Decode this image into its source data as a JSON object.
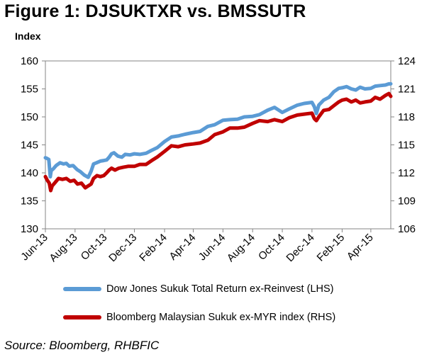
{
  "chart_data": {
    "type": "line",
    "title": "Figure 1: DJSUKTXR vs. BMSSUTR",
    "ylabel": "Index",
    "ylim": [
      130,
      160
    ],
    "y2lim": [
      106,
      124
    ],
    "yticks": [
      130,
      135,
      140,
      145,
      150,
      155,
      160
    ],
    "y2ticks": [
      106,
      109,
      112,
      115,
      118,
      121,
      124
    ],
    "xlim": [
      "2013-06-01",
      "2015-05-12"
    ],
    "xticks": [
      "Jun-13",
      "Aug-13",
      "Oct-13",
      "Dec-13",
      "Feb-14",
      "Apr-14",
      "Jun-14",
      "Aug-14",
      "Oct-14",
      "Dec-14",
      "Feb-15",
      "Apr-15"
    ],
    "xtick_dates": [
      "2013-06-01",
      "2013-08-01",
      "2013-10-01",
      "2013-12-01",
      "2014-02-01",
      "2014-04-01",
      "2014-06-01",
      "2014-08-01",
      "2014-10-01",
      "2014-12-01",
      "2015-02-01",
      "2015-04-01"
    ],
    "grid": false,
    "legend": "bottom",
    "series": [
      {
        "name": "Dow Jones Sukuk Total Return ex-Reinvest (LHS)",
        "axis": "left",
        "color": "#5b9bd5",
        "x": [
          "2013-06-01",
          "2013-06-04",
          "2013-06-08",
          "2013-06-11",
          "2013-06-13",
          "2013-06-17",
          "2013-06-23",
          "2013-07-01",
          "2013-07-08",
          "2013-07-14",
          "2013-07-20",
          "2013-07-28",
          "2013-08-05",
          "2013-08-12",
          "2013-08-20",
          "2013-08-28",
          "2013-09-03",
          "2013-09-08",
          "2013-09-14",
          "2013-09-22",
          "2013-09-29",
          "2013-10-05",
          "2013-10-10",
          "2013-10-15",
          "2013-10-20",
          "2013-10-28",
          "2013-11-05",
          "2013-11-12",
          "2013-11-22",
          "2013-12-01",
          "2013-12-12",
          "2013-12-25",
          "2014-01-05",
          "2014-01-17",
          "2014-02-01",
          "2014-02-15",
          "2014-03-01",
          "2014-03-15",
          "2014-04-01",
          "2014-04-15",
          "2014-05-01",
          "2014-05-15",
          "2014-06-01",
          "2014-06-15",
          "2014-07-01",
          "2014-07-15",
          "2014-08-01",
          "2014-08-15",
          "2014-09-01",
          "2014-09-15",
          "2014-10-01",
          "2014-10-15",
          "2014-11-01",
          "2014-11-15",
          "2014-12-01",
          "2014-12-06",
          "2014-12-10",
          "2014-12-15",
          "2014-12-25",
          "2015-01-05",
          "2015-01-15",
          "2015-01-25",
          "2015-02-01",
          "2015-02-10",
          "2015-02-20",
          "2015-03-01",
          "2015-03-10",
          "2015-03-20",
          "2015-04-01",
          "2015-04-10",
          "2015-04-20",
          "2015-05-01",
          "2015-05-08",
          "2015-05-12"
        ],
        "values": [
          142.7,
          142.6,
          142.4,
          139.3,
          140.4,
          140.7,
          141.3,
          141.8,
          141.6,
          141.7,
          141.2,
          141.3,
          140.6,
          140.2,
          139.6,
          139.2,
          140.3,
          141.6,
          141.8,
          142.1,
          142.2,
          142.3,
          142.8,
          143.4,
          143.6,
          143.0,
          142.8,
          143.3,
          143.2,
          143.4,
          143.3,
          143.5,
          144.0,
          144.5,
          145.6,
          146.4,
          146.6,
          146.9,
          147.2,
          147.4,
          148.3,
          148.6,
          149.4,
          149.5,
          149.6,
          150.0,
          150.1,
          150.4,
          151.2,
          151.7,
          150.8,
          151.4,
          152.1,
          152.4,
          152.6,
          151.8,
          150.6,
          152.1,
          153.0,
          153.5,
          154.5,
          155.1,
          155.2,
          155.4,
          155.0,
          154.8,
          155.3,
          155.0,
          155.1,
          155.5,
          155.6,
          155.7,
          155.9,
          155.9
        ]
      },
      {
        "name": "Bloomberg Malaysian Sukuk ex-MYR index (RHS)",
        "axis": "right",
        "color": "#c00000",
        "x": [
          "2013-06-01",
          "2013-06-05",
          "2013-06-09",
          "2013-06-12",
          "2013-06-15",
          "2013-06-20",
          "2013-06-28",
          "2013-07-06",
          "2013-07-14",
          "2013-07-22",
          "2013-07-30",
          "2013-08-06",
          "2013-08-14",
          "2013-08-22",
          "2013-08-28",
          "2013-09-03",
          "2013-09-08",
          "2013-09-15",
          "2013-09-22",
          "2013-09-29",
          "2013-10-05",
          "2013-10-10",
          "2013-10-15",
          "2013-10-22",
          "2013-10-30",
          "2013-11-08",
          "2013-11-18",
          "2013-12-01",
          "2013-12-12",
          "2013-12-25",
          "2014-01-05",
          "2014-01-17",
          "2014-02-01",
          "2014-02-15",
          "2014-03-01",
          "2014-03-15",
          "2014-04-01",
          "2014-04-15",
          "2014-05-01",
          "2014-05-15",
          "2014-06-01",
          "2014-06-15",
          "2014-07-01",
          "2014-07-15",
          "2014-08-01",
          "2014-08-15",
          "2014-09-01",
          "2014-09-15",
          "2014-10-01",
          "2014-10-15",
          "2014-11-01",
          "2014-11-15",
          "2014-12-01",
          "2014-12-06",
          "2014-12-10",
          "2014-12-15",
          "2014-12-25",
          "2015-01-05",
          "2015-01-15",
          "2015-01-25",
          "2015-02-01",
          "2015-02-10",
          "2015-02-20",
          "2015-03-01",
          "2015-03-10",
          "2015-03-20",
          "2015-04-01",
          "2015-04-10",
          "2015-04-20",
          "2015-05-01",
          "2015-05-08",
          "2015-05-12"
        ],
        "values": [
          111.6,
          111.2,
          110.9,
          110.1,
          110.6,
          110.9,
          111.4,
          111.3,
          111.4,
          111.1,
          111.2,
          110.8,
          110.9,
          110.4,
          110.6,
          110.8,
          111.4,
          111.7,
          111.6,
          111.7,
          112.0,
          112.3,
          112.5,
          112.3,
          112.5,
          112.6,
          112.7,
          112.7,
          112.9,
          112.9,
          113.3,
          113.7,
          114.3,
          114.9,
          114.8,
          115.0,
          115.1,
          115.2,
          115.5,
          116.1,
          116.4,
          116.8,
          116.8,
          116.9,
          117.3,
          117.6,
          117.5,
          117.7,
          117.5,
          117.9,
          118.2,
          118.3,
          118.4,
          117.8,
          117.6,
          118.0,
          118.7,
          118.8,
          119.2,
          119.6,
          119.8,
          119.9,
          119.6,
          119.8,
          119.5,
          119.6,
          119.7,
          120.1,
          119.9,
          120.3,
          120.5,
          120.2
        ]
      }
    ],
    "source": "Source: Bloomberg, RHBFIC"
  }
}
